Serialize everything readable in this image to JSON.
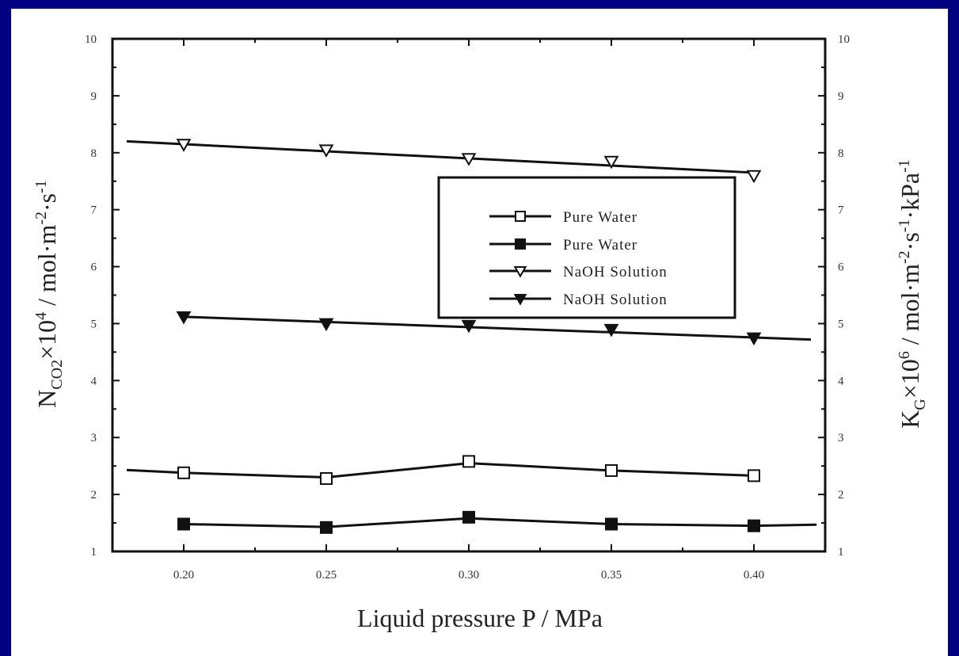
{
  "colors": {
    "frame": "#000080",
    "ink": "#111111",
    "background": "#ffffff"
  },
  "chart_data": {
    "type": "line",
    "xlabel": "Liquid pressure P / MPa",
    "ylabel_left": {
      "base": "N",
      "sub": "CO2",
      "rest": "×10",
      "sup": "4",
      "unit": " / mol·m",
      "unit_sup1": "-2",
      "unit_mid": "·s",
      "unit_sup2": "-1"
    },
    "ylabel_right": {
      "base": "K",
      "sub": "G",
      "rest": "×10",
      "sup": "6",
      "unit": " / mol·m",
      "unit_sup1": "-2",
      "unit_mid": "·s",
      "unit_sup2": "-1",
      "unit_tail": "·kPa",
      "unit_sup3": "-1"
    },
    "xlim": [
      0.175,
      0.425
    ],
    "ylim": [
      1,
      10
    ],
    "x_ticks": [
      "0.20",
      "0.25",
      "0.30",
      "0.35",
      "0.40"
    ],
    "y_ticks": [
      "1",
      "2",
      "3",
      "4",
      "5",
      "6",
      "7",
      "8",
      "9",
      "10"
    ],
    "x": [
      0.2,
      0.25,
      0.3,
      0.35,
      0.4
    ],
    "series": [
      {
        "name": "Pure Water",
        "marker": "open-square",
        "values": [
          2.38,
          2.28,
          2.58,
          2.42,
          2.33
        ],
        "fit_x": [
          0.18,
          0.2,
          0.25,
          0.3,
          0.35,
          0.4
        ],
        "fit_y": [
          2.43,
          2.38,
          2.3,
          2.55,
          2.42,
          2.33
        ]
      },
      {
        "name": "Pure Water",
        "marker": "filled-square",
        "values": [
          1.48,
          1.42,
          1.6,
          1.48,
          1.45
        ],
        "fit_x": [
          0.2,
          0.25,
          0.3,
          0.35,
          0.4,
          0.422
        ],
        "fit_y": [
          1.48,
          1.43,
          1.58,
          1.48,
          1.45,
          1.47
        ]
      },
      {
        "name": "NaOH Solution",
        "marker": "open-triangle-down",
        "values": [
          8.15,
          8.05,
          7.9,
          7.85,
          7.6
        ],
        "fit_x": [
          0.18,
          0.4
        ],
        "fit_y": [
          8.2,
          7.65
        ]
      },
      {
        "name": "NaOH Solution",
        "marker": "filled-triangle-down",
        "values": [
          5.12,
          5.0,
          4.97,
          4.9,
          4.75
        ],
        "fit_x": [
          0.2,
          0.42
        ],
        "fit_y": [
          5.12,
          4.72
        ]
      }
    ],
    "legend_position": "center-right"
  }
}
